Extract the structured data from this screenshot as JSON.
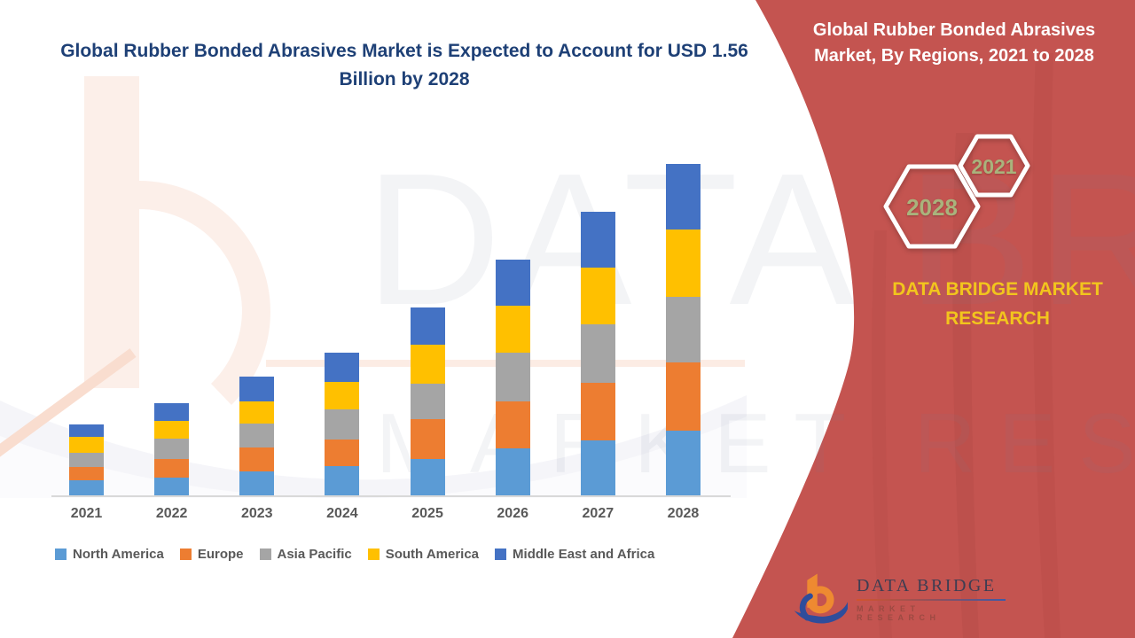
{
  "title": {
    "text": "Global Rubber Bonded Abrasives Market is Expected to Account for USD 1.56 Billion by 2028",
    "color": "#1E4076"
  },
  "right_panel": {
    "heading": "Global Rubber Bonded Abrasives Market, By Regions, 2021 to 2028",
    "panel_color": "#C45450",
    "badges": [
      {
        "year": "2028"
      },
      {
        "year": "2021"
      }
    ],
    "badge_text_color": "#A9B37C",
    "brand_caps": "DATA BRIDGE MARKET RESEARCH",
    "brand_caps_color": "#F2C51D"
  },
  "watermark": {
    "line1": "DATA BRIDGE",
    "line2": "MARKET RESEARCH"
  },
  "logo": {
    "name": "DATA BRIDGE",
    "subtitle": "MARKET RESEARCH"
  },
  "chart_data": {
    "type": "bar",
    "stacked": true,
    "title": "Global Rubber Bonded Abrasives Market is Expected to Account for USD 1.56 Billion by 2028",
    "unit": "USD billion",
    "categories": [
      "2021",
      "2022",
      "2023",
      "2024",
      "2025",
      "2026",
      "2027",
      "2028"
    ],
    "series": [
      {
        "name": "North America",
        "color": "#5B9BD5",
        "values": [
          0.075,
          0.087,
          0.117,
          0.141,
          0.175,
          0.225,
          0.262,
          0.308
        ]
      },
      {
        "name": "Europe",
        "color": "#ED7D31",
        "values": [
          0.062,
          0.087,
          0.112,
          0.125,
          0.187,
          0.22,
          0.27,
          0.32
        ]
      },
      {
        "name": "Asia Pacific",
        "color": "#A5A5A5",
        "values": [
          0.067,
          0.096,
          0.112,
          0.141,
          0.166,
          0.229,
          0.275,
          0.308
        ]
      },
      {
        "name": "South America",
        "color": "#FFC000",
        "values": [
          0.075,
          0.083,
          0.104,
          0.129,
          0.183,
          0.22,
          0.266,
          0.316
        ]
      },
      {
        "name": "Middle East and Africa",
        "color": "#4472C4",
        "values": [
          0.058,
          0.083,
          0.117,
          0.137,
          0.175,
          0.216,
          0.262,
          0.308
        ]
      }
    ],
    "totals": [
      0.337,
      0.436,
      0.562,
      0.673,
      0.886,
      1.11,
      1.335,
      1.56
    ],
    "ylim": [
      0,
      1.6
    ],
    "y_axis_visible": false,
    "grid": false,
    "legend_position": "bottom",
    "xlabel": "",
    "ylabel": ""
  }
}
